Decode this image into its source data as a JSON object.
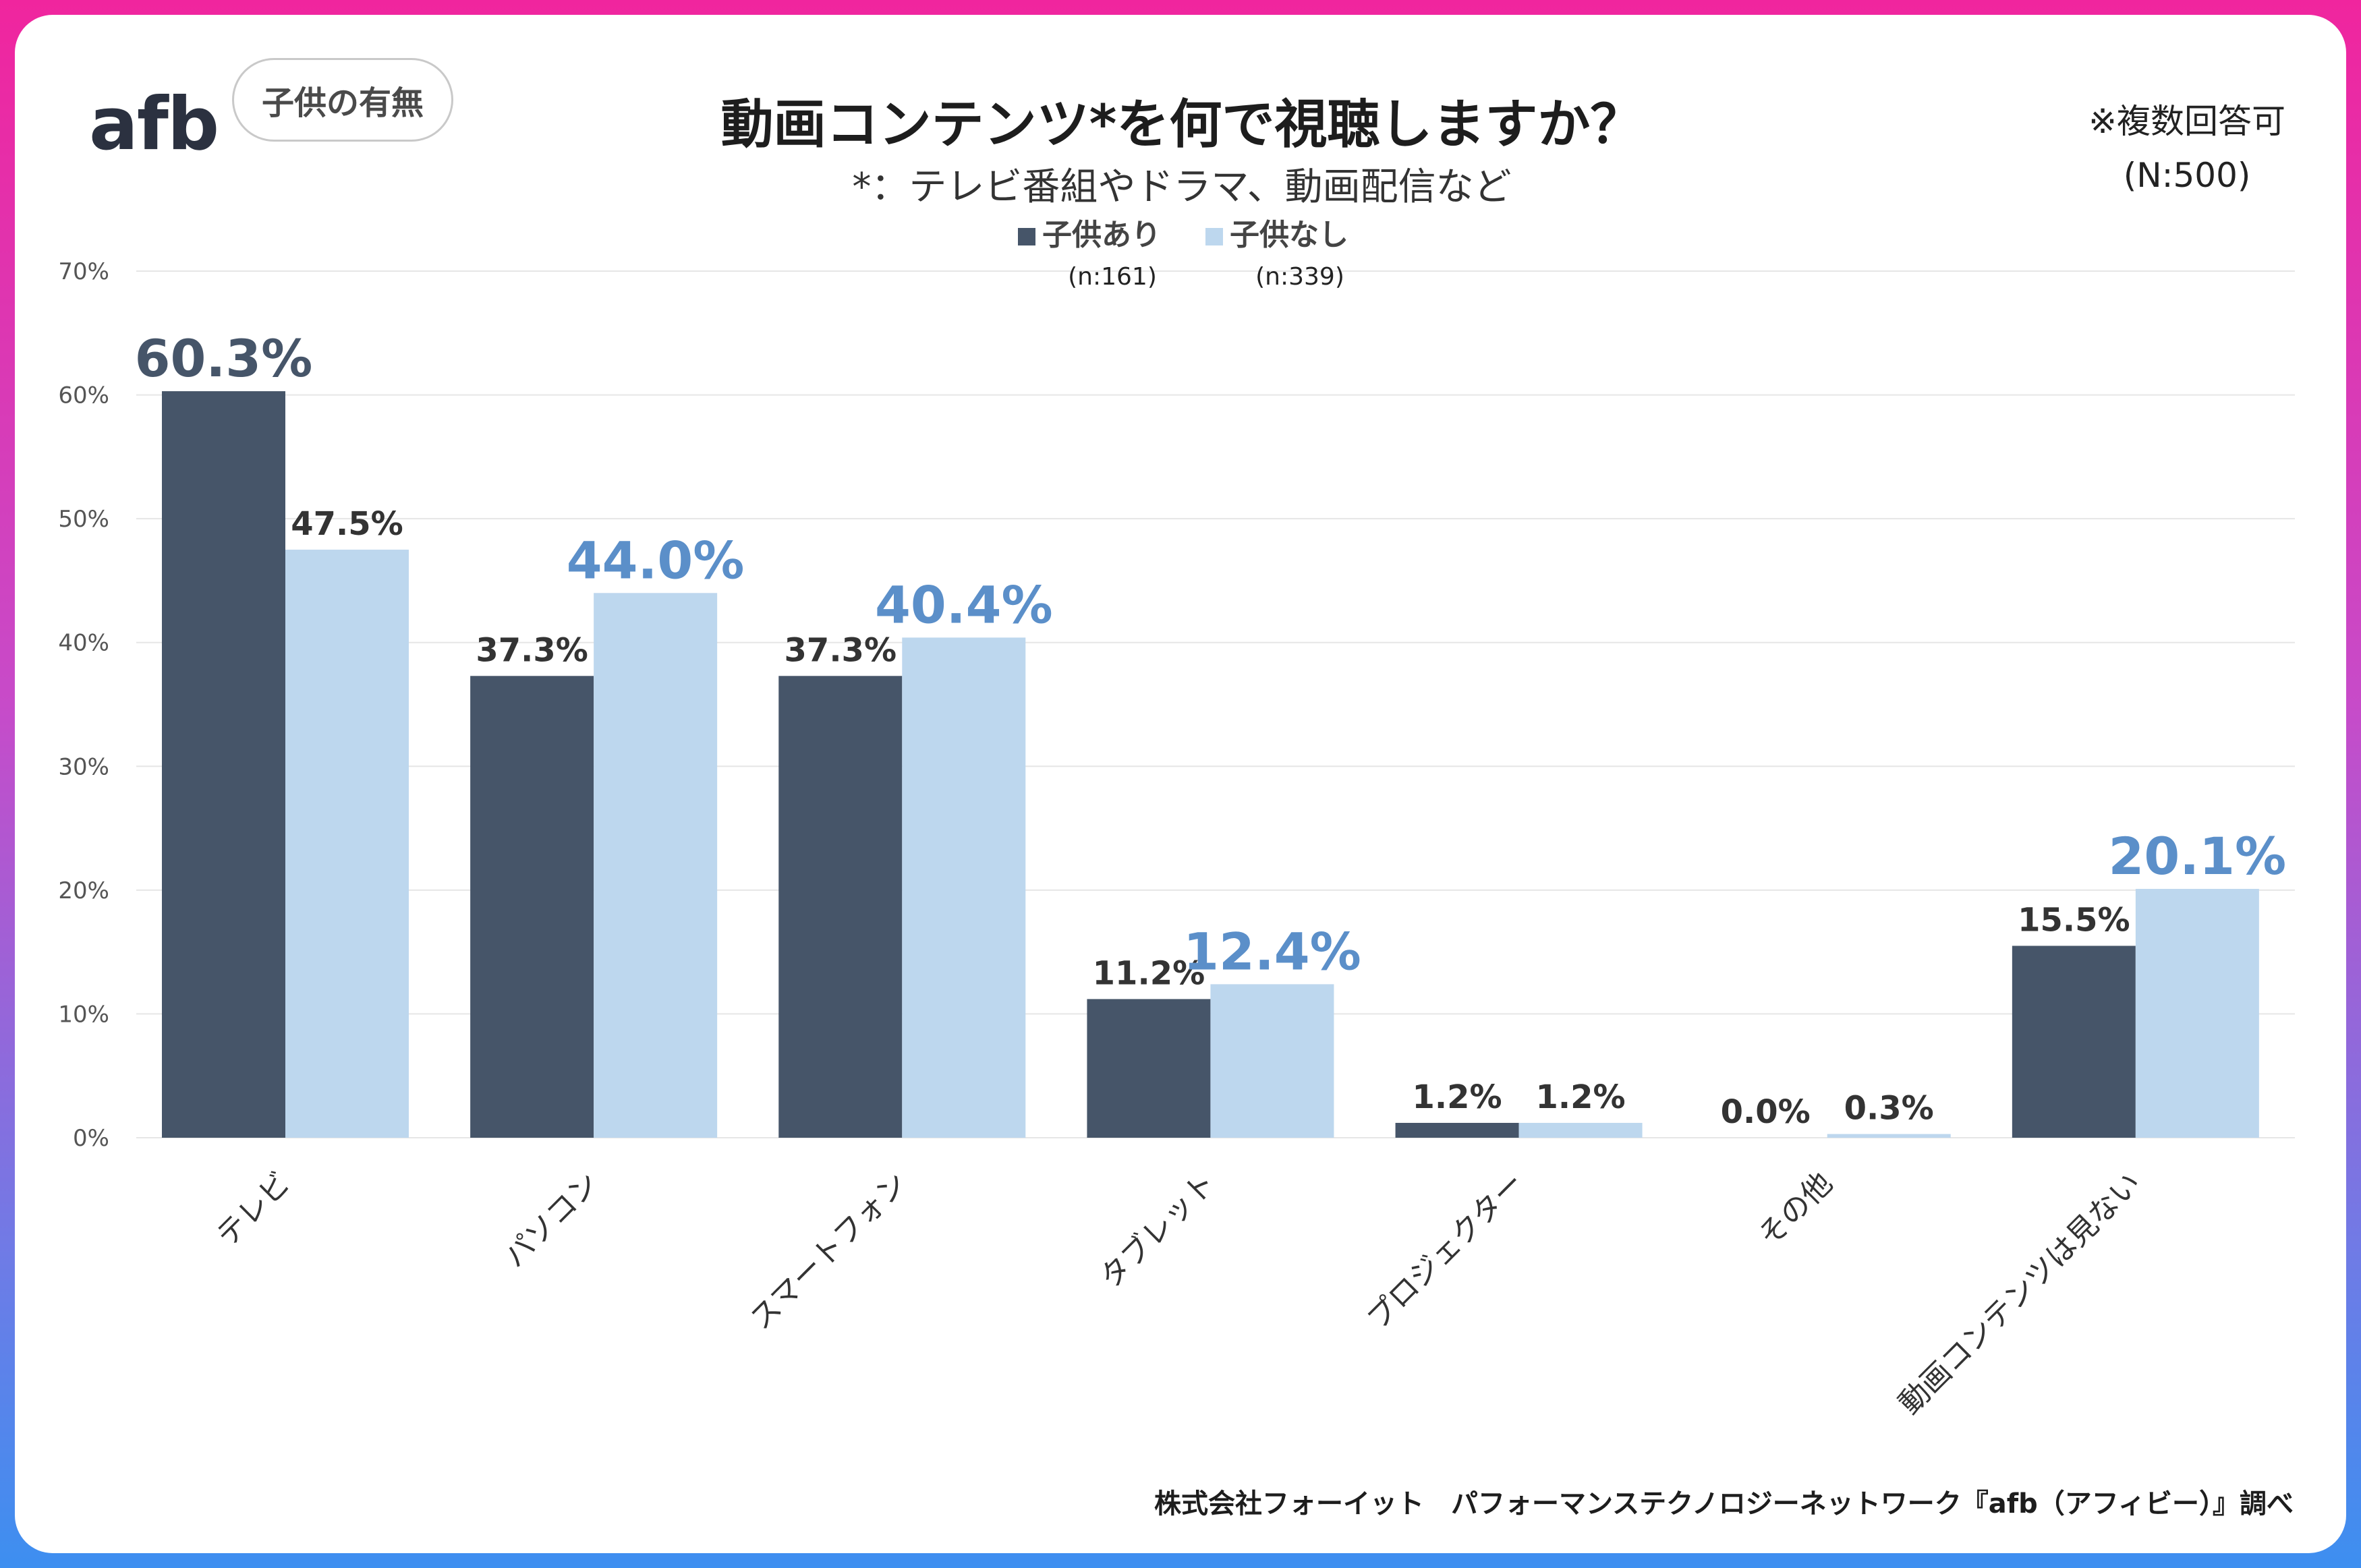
{
  "brand": {
    "logo_text": "afb",
    "subset_badge": "子供の有無"
  },
  "title": "動画コンテンツ*を何で視聴しますか？",
  "subtitle": "*：テレビ番組やドラマ、動画配信など",
  "note": {
    "line1": "※複数回答可",
    "line2": "(N:500)"
  },
  "source": "株式会社フォーイット　パフォーマンステクノロジーネットワーク『afb（アフィビー）』調べ",
  "colors": {
    "series1": "#465569",
    "series2": "#bdd7ee",
    "highlight1": "#465569",
    "highlight2": "#5b8fc9",
    "label": "#333333",
    "grid": "#e6e6e6"
  },
  "chart_data": {
    "type": "bar",
    "title": "動画コンテンツ*を何で視聴しますか？",
    "xlabel": "",
    "ylabel": "",
    "ylim": [
      0,
      70
    ],
    "yticks": [
      0,
      10,
      20,
      30,
      40,
      50,
      60,
      70
    ],
    "ytick_labels": [
      "0%",
      "10%",
      "20%",
      "30%",
      "40%",
      "50%",
      "60%",
      "70%"
    ],
    "grid": true,
    "legend_position": "top-center",
    "categories": [
      "テレビ",
      "パソコン",
      "スマートフォン",
      "タブレット",
      "プロジェクター",
      "その他",
      "動画コンテンツは見ない"
    ],
    "series": [
      {
        "name": "子供あり",
        "n_label": "(n:161)",
        "values": [
          60.3,
          37.3,
          37.3,
          11.2,
          1.2,
          0.0,
          15.5
        ],
        "labels": [
          "60.3%",
          "37.3%",
          "37.3%",
          "11.2%",
          "1.2%",
          "0.0%",
          "15.5%"
        ],
        "highlight": [
          true,
          false,
          false,
          false,
          false,
          false,
          false
        ]
      },
      {
        "name": "子供なし",
        "n_label": "(n:339)",
        "values": [
          47.5,
          44.0,
          40.4,
          12.4,
          1.2,
          0.3,
          20.1
        ],
        "labels": [
          "47.5%",
          "44.0%",
          "40.4%",
          "12.4%",
          "1.2%",
          "0.3%",
          "20.1%"
        ],
        "highlight": [
          false,
          true,
          true,
          true,
          false,
          false,
          true
        ]
      }
    ]
  }
}
